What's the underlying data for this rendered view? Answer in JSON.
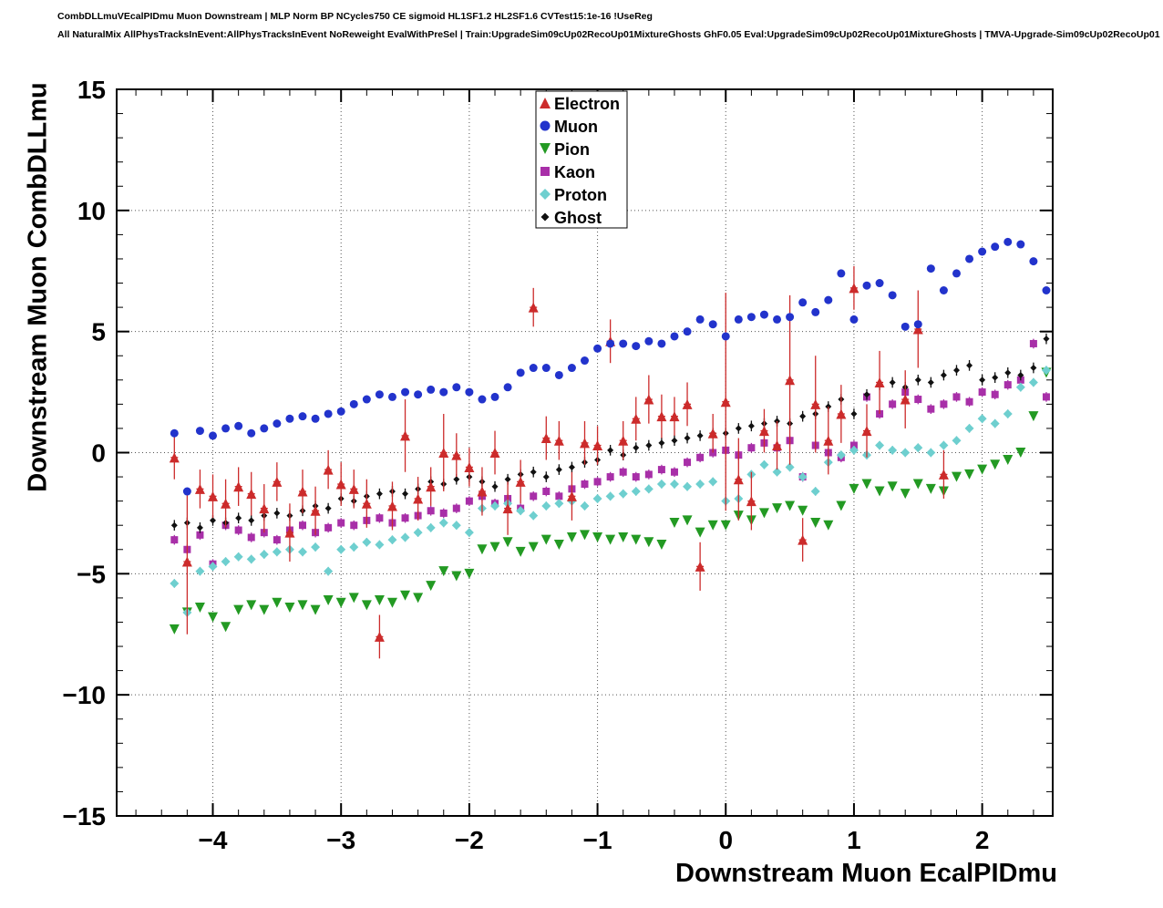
{
  "header": {
    "line1": "CombDLLmuVEcalPIDmu Muon Downstream | MLP Norm BP NCycles750 CE sigmoid HL1SF1.2 HL2SF1.6 CVTest15:1e-16 !UseReg",
    "line2": "All NaturalMix AllPhysTracksInEvent:AllPhysTracksInEvent NoReweight EvalWithPreSel | Train:UpgradeSim09cUp02RecoUp01MixtureGhosts GhF0.05 Eval:UpgradeSim09cUp02RecoUp01MixtureGhosts | TMVA-Upgrade-Sim09cUp02RecoUp01"
  },
  "chart_data": {
    "type": "scatter",
    "title": "CombDLLmuVEcalPIDmu Muon Downstream",
    "xlabel": "Downstream Muon EcalPIDmu",
    "ylabel": "Downstream Muon CombDLLmu",
    "xlim": [
      -4.75,
      2.55
    ],
    "ylim": [
      -15,
      15
    ],
    "grid": "dotted",
    "legend_position": "top-center",
    "xticks": {
      "values": [
        -4,
        -3,
        -2,
        -1,
        0,
        1,
        2
      ],
      "labels": [
        "−4",
        "−3",
        "−2",
        "−1",
        "0",
        "1",
        "2"
      ]
    },
    "yticks": {
      "values": [
        -15,
        -10,
        -5,
        0,
        5,
        10,
        15
      ],
      "labels": [
        "−15",
        "−10",
        "−5",
        "0",
        "5",
        "10",
        "15"
      ]
    },
    "x": [
      -4.3,
      -4.2,
      -4.1,
      -4.0,
      -3.9,
      -3.8,
      -3.7,
      -3.6,
      -3.5,
      -3.4,
      -3.3,
      -3.2,
      -3.1,
      -3.0,
      -2.9,
      -2.8,
      -2.7,
      -2.6,
      -2.5,
      -2.4,
      -2.3,
      -2.2,
      -2.1,
      -2.0,
      -1.9,
      -1.8,
      -1.7,
      -1.6,
      -1.5,
      -1.4,
      -1.3,
      -1.2,
      -1.1,
      -1.0,
      -0.9,
      -0.8,
      -0.7,
      -0.6,
      -0.5,
      -0.4,
      -0.3,
      -0.2,
      -0.1,
      0.0,
      0.1,
      0.2,
      0.3,
      0.4,
      0.5,
      0.6,
      0.7,
      0.8,
      0.9,
      1.0,
      1.1,
      1.2,
      1.3,
      1.4,
      1.5,
      1.6,
      1.7,
      1.8,
      1.9,
      2.0,
      2.1,
      2.2,
      2.3,
      2.4,
      2.5
    ],
    "series": [
      {
        "name": "Electron",
        "color": "#cc2b2b",
        "marker": "triangle-up",
        "size": 5.5,
        "y": [
          -0.2,
          -4.5,
          -1.5,
          -1.8,
          -2.1,
          -1.4,
          -1.7,
          -2.3,
          -1.2,
          -3.3,
          -1.6,
          -2.4,
          -0.7,
          -1.3,
          -1.5,
          -2.1,
          -7.6,
          -2.2,
          0.7,
          -1.9,
          -1.4,
          0.0,
          -0.1,
          -0.6,
          -1.6,
          0.0,
          -2.3,
          -1.2,
          6.0,
          0.6,
          0.5,
          -1.8,
          0.4,
          0.3,
          4.6,
          0.5,
          1.4,
          2.2,
          1.5,
          1.5,
          2.0,
          -4.7,
          0.8,
          2.1,
          -1.1,
          -2.0,
          0.9,
          0.3,
          3.0,
          -3.6,
          2.0,
          0.5,
          1.6,
          6.8,
          0.9,
          2.9,
          null,
          2.2,
          5.1,
          null,
          -0.9,
          null,
          null,
          null,
          null,
          null,
          null,
          null,
          null
        ],
        "yerr": [
          0.9,
          3.0,
          0.8,
          0.9,
          1.0,
          0.8,
          0.9,
          1.0,
          0.8,
          1.2,
          0.9,
          1.0,
          0.8,
          0.9,
          0.8,
          1.0,
          0.9,
          1.0,
          1.5,
          0.9,
          0.8,
          1.6,
          0.9,
          0.8,
          1.0,
          0.9,
          1.1,
          0.9,
          0.8,
          0.9,
          0.8,
          1.0,
          0.9,
          0.8,
          0.9,
          0.8,
          0.9,
          1.0,
          0.9,
          0.8,
          0.9,
          1.0,
          0.8,
          4.5,
          1.7,
          1.2,
          0.9,
          1.0,
          3.5,
          0.9,
          2.0,
          1.4,
          1.2,
          0.9,
          1.1,
          1.3,
          0,
          1.2,
          1.6,
          0,
          1.0,
          0,
          0,
          0,
          0,
          0,
          0,
          0,
          0
        ]
      },
      {
        "name": "Muon",
        "color": "#2233cc",
        "marker": "circle",
        "size": 4.5,
        "yerr_const": 0.12,
        "y": [
          0.8,
          -1.6,
          0.9,
          0.7,
          1.0,
          1.1,
          0.8,
          1.0,
          1.2,
          1.4,
          1.5,
          1.4,
          1.6,
          1.7,
          2.0,
          2.2,
          2.4,
          2.3,
          2.5,
          2.4,
          2.6,
          2.5,
          2.7,
          2.5,
          2.2,
          2.3,
          2.7,
          3.3,
          3.5,
          3.5,
          3.2,
          3.5,
          3.8,
          4.3,
          4.5,
          4.5,
          4.4,
          4.6,
          4.5,
          4.8,
          5.0,
          5.5,
          5.3,
          4.8,
          5.5,
          5.6,
          5.7,
          5.5,
          5.6,
          6.2,
          5.8,
          6.3,
          7.4,
          5.5,
          6.9,
          7.0,
          6.5,
          5.2,
          5.3,
          7.6,
          6.7,
          7.4,
          8.0,
          8.3,
          8.5,
          8.7,
          8.6,
          7.9,
          6.7
        ]
      },
      {
        "name": "Pion",
        "color": "#239a23",
        "marker": "triangle-down",
        "size": 5.5,
        "yerr_const": 0.15,
        "y": [
          -7.3,
          -6.6,
          -6.4,
          -6.8,
          -7.2,
          -6.5,
          -6.3,
          -6.5,
          -6.2,
          -6.4,
          -6.3,
          -6.5,
          -6.1,
          -6.2,
          -6.0,
          -6.3,
          -6.1,
          -6.2,
          -5.9,
          -6.0,
          -5.5,
          -4.9,
          -5.1,
          -5.0,
          -4.0,
          -3.9,
          -3.7,
          -4.1,
          -3.9,
          -3.6,
          -3.8,
          -3.5,
          -3.4,
          -3.5,
          -3.6,
          -3.5,
          -3.6,
          -3.7,
          -3.8,
          -2.9,
          -2.8,
          -3.3,
          -3.0,
          -3.0,
          -2.6,
          -2.8,
          -2.5,
          -2.3,
          -2.2,
          -2.4,
          -2.9,
          -3.0,
          -2.2,
          -1.5,
          -1.3,
          -1.6,
          -1.4,
          -1.7,
          -1.3,
          -1.5,
          -1.6,
          -1.0,
          -0.9,
          -0.7,
          -0.5,
          -0.3,
          0.0,
          1.5,
          3.3
        ]
      },
      {
        "name": "Kaon",
        "color": "#a82fa8",
        "marker": "square",
        "size": 4,
        "yerr_const": 0.2,
        "y": [
          -3.6,
          -4.0,
          -3.4,
          -4.6,
          -3.0,
          -3.2,
          -3.5,
          -3.3,
          -3.6,
          -3.2,
          -3.0,
          -3.3,
          -3.1,
          -2.9,
          -3.0,
          -2.8,
          -2.7,
          -2.9,
          -2.7,
          -2.6,
          -2.4,
          -2.5,
          -2.3,
          -2.0,
          -1.8,
          -2.1,
          -1.9,
          -2.3,
          -1.8,
          -1.6,
          -1.8,
          -1.5,
          -1.3,
          -1.2,
          -1.0,
          -0.8,
          -1.0,
          -0.9,
          -0.7,
          -0.8,
          -0.4,
          -0.2,
          0.0,
          0.1,
          -0.1,
          0.2,
          0.4,
          0.2,
          0.5,
          -1.0,
          0.3,
          0.0,
          -0.2,
          0.3,
          2.3,
          1.6,
          2.0,
          2.5,
          2.2,
          1.8,
          2.0,
          2.3,
          2.1,
          2.5,
          2.4,
          2.8,
          3.0,
          4.5,
          2.3
        ]
      },
      {
        "name": "Proton",
        "color": "#6ecfcf",
        "marker": "diamond",
        "size": 5,
        "yerr_const": 0.18,
        "y": [
          -5.4,
          -6.6,
          -4.9,
          -4.7,
          -4.5,
          -4.3,
          -4.4,
          -4.2,
          -4.1,
          -4.0,
          -4.1,
          -3.9,
          -4.9,
          -4.0,
          -3.9,
          -3.7,
          -3.8,
          -3.6,
          -3.5,
          -3.3,
          -3.1,
          -2.9,
          -3.0,
          -3.3,
          -2.3,
          -2.2,
          -2.1,
          -2.4,
          -2.6,
          -2.2,
          -2.1,
          -2.0,
          -2.2,
          -1.9,
          -1.8,
          -1.7,
          -1.6,
          -1.5,
          -1.3,
          -1.3,
          -1.4,
          -1.3,
          -1.2,
          -2.0,
          -1.9,
          -0.9,
          -0.5,
          -0.8,
          -0.6,
          -1.0,
          -1.6,
          -0.4,
          -0.1,
          0.1,
          -0.1,
          0.3,
          0.1,
          0.0,
          0.2,
          0.0,
          0.3,
          0.5,
          1.0,
          1.4,
          1.2,
          1.6,
          2.7,
          2.9,
          3.4
        ]
      },
      {
        "name": "Ghost",
        "color": "#111111",
        "marker": "diamond",
        "size": 3.5,
        "yerr_const": 0.22,
        "y": [
          -3.0,
          -2.9,
          -3.1,
          -2.8,
          -2.9,
          -2.7,
          -2.8,
          -2.6,
          -2.5,
          -2.6,
          -2.4,
          -2.2,
          -2.3,
          -1.9,
          -2.0,
          -1.8,
          -1.7,
          -1.6,
          -1.7,
          -1.5,
          -1.2,
          -1.3,
          -1.1,
          -1.0,
          -1.2,
          -1.4,
          -1.1,
          -0.9,
          -0.8,
          -1.0,
          -0.7,
          -0.6,
          -0.4,
          -0.3,
          0.1,
          -0.1,
          0.2,
          0.3,
          0.4,
          0.5,
          0.6,
          0.7,
          0.8,
          0.8,
          1.0,
          1.1,
          1.2,
          1.3,
          1.2,
          1.5,
          1.6,
          1.9,
          2.2,
          1.6,
          2.4,
          2.8,
          2.9,
          2.7,
          3.0,
          2.9,
          3.2,
          3.4,
          3.6,
          3.0,
          3.1,
          3.3,
          3.2,
          3.5,
          4.7
        ]
      }
    ]
  }
}
